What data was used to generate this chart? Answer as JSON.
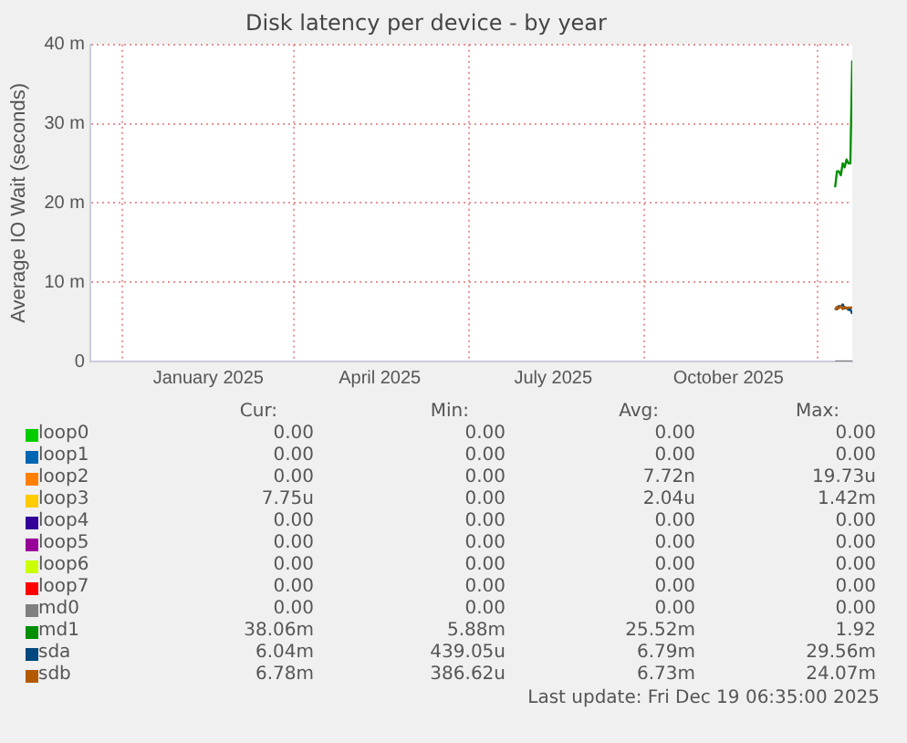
{
  "chart_data": {
    "type": "line",
    "title": "Disk latency per device - by year",
    "ylabel": "Average IO Wait (seconds)",
    "x": [
      "2025-12-10",
      "2025-12-11",
      "2025-12-12",
      "2025-12-13",
      "2025-12-14",
      "2025-12-15",
      "2025-12-16",
      "2025-12-17",
      "2025-12-18",
      "2025-12-19"
    ],
    "xlim": [
      "2024-11-14",
      "2025-12-19"
    ],
    "xticks": [
      {
        "value": "2024-12-01",
        "label": null
      },
      {
        "value": "2025-01-15",
        "label": "January 2025"
      },
      {
        "value": "2025-03-01",
        "label": null
      },
      {
        "value": "2025-04-15",
        "label": "April 2025"
      },
      {
        "value": "2025-06-01",
        "label": null
      },
      {
        "value": "2025-07-15",
        "label": "July 2025"
      },
      {
        "value": "2025-09-01",
        "label": null
      },
      {
        "value": "2025-10-15",
        "label": "October 2025"
      },
      {
        "value": "2025-12-01",
        "label": null
      }
    ],
    "ylim": [
      0,
      40
    ],
    "yticks": [
      0,
      {
        "value": 10,
        "label": "10 m"
      },
      {
        "value": 20,
        "label": "20 m"
      },
      {
        "value": 30,
        "label": "30 m"
      },
      {
        "value": 40,
        "label": "40 m"
      }
    ],
    "grid": true,
    "legend": "bottom",
    "marker": "none",
    "line_style": "solid",
    "series": [
      {
        "name": "loop0",
        "color": "#00cc00",
        "values": [
          null,
          null,
          null,
          null,
          null,
          null,
          null,
          null,
          null,
          null
        ]
      },
      {
        "name": "loop1",
        "color": "#0066b3",
        "values": [
          null,
          null,
          null,
          null,
          null,
          null,
          null,
          null,
          null,
          null
        ]
      },
      {
        "name": "loop2",
        "color": "#ff8000",
        "values": [
          null,
          null,
          null,
          null,
          null,
          null,
          null,
          null,
          null,
          null
        ]
      },
      {
        "name": "loop3",
        "color": "#ffcc00",
        "values": [
          null,
          null,
          null,
          null,
          null,
          null,
          null,
          null,
          null,
          null
        ]
      },
      {
        "name": "loop4",
        "color": "#330099",
        "values": [
          null,
          null,
          null,
          null,
          null,
          null,
          null,
          null,
          null,
          null
        ]
      },
      {
        "name": "loop5",
        "color": "#990099",
        "values": [
          null,
          null,
          null,
          null,
          null,
          null,
          null,
          null,
          null,
          null
        ]
      },
      {
        "name": "loop6",
        "color": "#ccff00",
        "values": [
          null,
          null,
          null,
          null,
          null,
          null,
          null,
          null,
          null,
          null
        ]
      },
      {
        "name": "loop7",
        "color": "#ff0000",
        "values": [
          null,
          null,
          null,
          null,
          null,
          null,
          null,
          null,
          null,
          null
        ]
      },
      {
        "name": "md0",
        "color": "#808080",
        "values": [
          0,
          0,
          0,
          0,
          0,
          0,
          0,
          0,
          0,
          0
        ]
      },
      {
        "name": "md1",
        "color": "#008f00",
        "values": [
          22,
          24,
          24,
          23.5,
          25,
          24.5,
          25.5,
          25,
          25,
          38
        ]
      },
      {
        "name": "sda",
        "color": "#00487d",
        "values": [
          6.8,
          6.6,
          7,
          6.9,
          7.2,
          6.7,
          6.8,
          6.5,
          6.6,
          6
        ]
      },
      {
        "name": "sdb",
        "color": "#b35a00",
        "values": [
          6.5,
          6.9,
          6.7,
          7,
          6.6,
          6.9,
          6.7,
          6.8,
          6.8,
          6.8
        ]
      }
    ],
    "annotations": [
      "Cur:",
      "Min:",
      "Avg:",
      "Max:",
      "0.00",
      "0.00",
      "0.00",
      "0.00",
      "0.00",
      "0.00",
      "0.00",
      "0.00",
      "0.00",
      "0.00",
      "7.72n",
      "19.73u",
      "7.75u",
      "0.00",
      "2.04u",
      "1.42m",
      "0.00",
      "0.00",
      "0.00",
      "0.00",
      "0.00",
      "0.00",
      "0.00",
      "0.00",
      "0.00",
      "0.00",
      "0.00",
      "0.00",
      "0.00",
      "0.00",
      "0.00",
      "0.00",
      "0.00",
      "0.00",
      "0.00",
      "0.00",
      "38.06m",
      "5.88m",
      "25.52m",
      "1.92",
      "6.04m",
      "439.05u",
      "6.79m",
      "29.56m",
      "6.78m",
      "386.62u",
      "6.73m",
      "24.07m",
      "Last update: Fri Dec 19 06:35:00 2025"
    ]
  }
}
